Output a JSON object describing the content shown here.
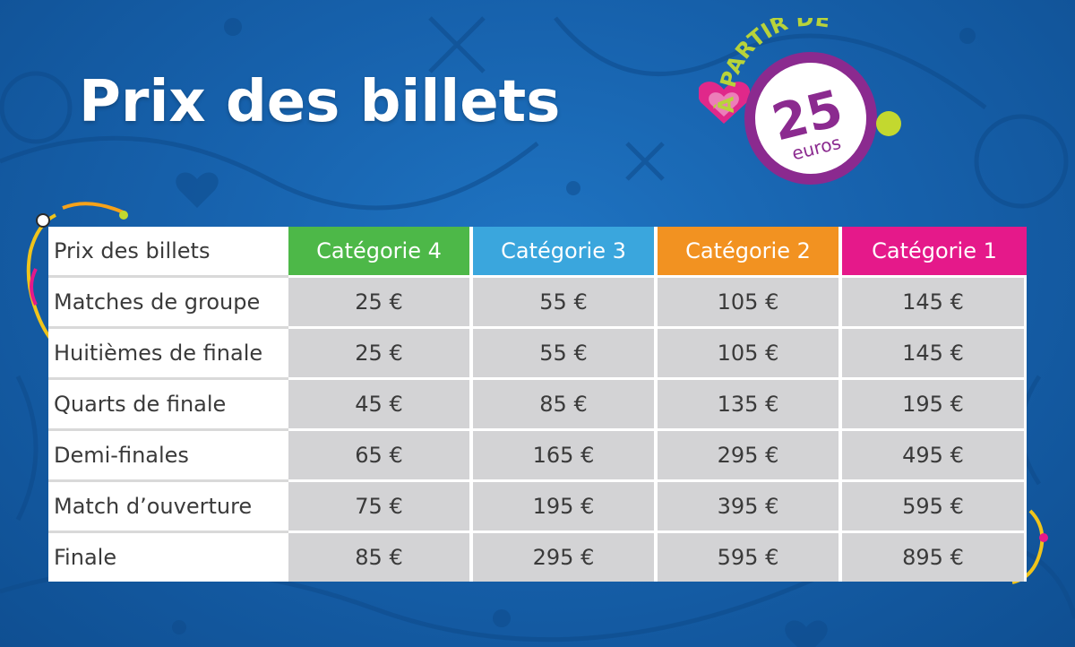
{
  "title": "Prix des billets",
  "badge": {
    "arc_text": "À PARTIR DE",
    "amount": "25",
    "unit": "euros",
    "colors": {
      "ring": "#8b2a8f",
      "arc_text": "#b8d33a",
      "dot": "#c3d82f",
      "heart": "#e0288a"
    }
  },
  "table": {
    "corner_label": "Prix des billets",
    "categories": [
      {
        "label": "Catégorie 4",
        "color": "#4db848"
      },
      {
        "label": "Catégorie 3",
        "color": "#3aa6dd"
      },
      {
        "label": "Catégorie 2",
        "color": "#f29221"
      },
      {
        "label": "Catégorie 1",
        "color": "#e5198a"
      }
    ],
    "rows": [
      {
        "label": "Matches de groupe",
        "values": [
          "25 €",
          "55 €",
          "105 €",
          "145 €"
        ]
      },
      {
        "label": "Huitièmes de finale",
        "values": [
          "25 €",
          "55 €",
          "105 €",
          "145 €"
        ]
      },
      {
        "label": "Quarts de finale",
        "values": [
          "45 €",
          "85 €",
          "135 €",
          "195 €"
        ]
      },
      {
        "label": "Demi-finales",
        "values": [
          "65 €",
          "165 €",
          "295 €",
          "495 €"
        ]
      },
      {
        "label": "Match d’ouverture",
        "values": [
          "75 €",
          "195 €",
          "395 €",
          "595 €"
        ]
      },
      {
        "label": "Finale",
        "values": [
          "85 €",
          "295 €",
          "595 €",
          "895 €"
        ]
      }
    ]
  },
  "decor": {
    "background_color": "#1762ad",
    "pattern_color": "#0f4f92"
  }
}
